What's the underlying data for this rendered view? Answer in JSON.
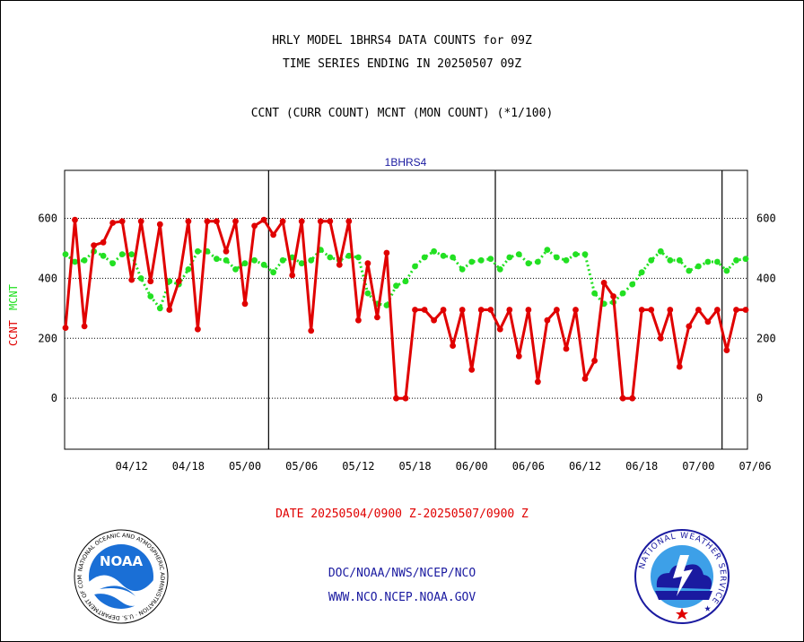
{
  "header": {
    "title_line1": "HRLY MODEL 1BHRS4 DATA COUNTS for 09Z",
    "title_line2": "TIME SERIES ENDING IN 20250507 09Z",
    "subtitle": "CCNT (CURR COUNT) MCNT (MON COUNT) (*1/100)"
  },
  "footer": {
    "date_range": "DATE 20250504/0900 Z-20250507/0900 Z",
    "credit_line1": "DOC/NOAA/NWS/NCEP/NCO",
    "credit_line2": "WWW.NCO.NCEP.NOAA.GOV"
  },
  "logos": {
    "noaa_text": "NOAA",
    "noaa_ring_text": "NATIONAL OCEANIC AND ATMOSPHERIC ADMINISTRATION · U.S. DEPARTMENT OF COMMERCE ·",
    "nws_ring_text": "NATIONAL WEATHER SERVICE ★"
  },
  "colors": {
    "ccnt": "#e00000",
    "mcnt": "#22e022",
    "panel_label": "#1a1aa0",
    "credits": "#1a1aa0",
    "date_range": "#e00000"
  },
  "chart_data": {
    "type": "line",
    "title": "1BHRS4",
    "ylabel_ccnt": "CCNT",
    "ylabel_mcnt": "MCNT",
    "ylim": [
      -170,
      760
    ],
    "y_ticks": [
      0,
      200,
      400,
      600
    ],
    "y_tick_labels": [
      "0",
      "200",
      "400",
      "600"
    ],
    "grid": true,
    "x_tick_labels": [
      "04/12",
      "04/18",
      "05/00",
      "05/06",
      "05/12",
      "05/18",
      "06/00",
      "06/06",
      "06/12",
      "06/18",
      "07/00",
      "07/06"
    ],
    "x_tick_hours": [
      15,
      21,
      27,
      33,
      39,
      45,
      51,
      57,
      63,
      69,
      75,
      81
    ],
    "x_range_hours": [
      8,
      80
    ],
    "day_boundaries_hours": [
      29.5,
      53.5,
      77.5
    ],
    "series": [
      {
        "name": "CCNT",
        "marker": "circle",
        "x": [
          8,
          9,
          10,
          11,
          12,
          13,
          14,
          15,
          16,
          17,
          18,
          19,
          20,
          21,
          22,
          23,
          24,
          25,
          26,
          27,
          28,
          29,
          30,
          31,
          32,
          33,
          34,
          35,
          36,
          37,
          38,
          39,
          40,
          41,
          42,
          43,
          44,
          45,
          46,
          47,
          48,
          49,
          50,
          51,
          52,
          53,
          54,
          55,
          56,
          57,
          58,
          59,
          60,
          61,
          62,
          63,
          64,
          65,
          66,
          67,
          68,
          69,
          70,
          71,
          72,
          73,
          74,
          75,
          76,
          77,
          78,
          79,
          80
        ],
        "values": [
          235,
          595,
          240,
          510,
          520,
          585,
          590,
          395,
          590,
          390,
          580,
          295,
          390,
          590,
          230,
          590,
          590,
          490,
          590,
          315,
          575,
          595,
          545,
          590,
          410,
          590,
          225,
          590,
          590,
          445,
          590,
          260,
          450,
          270,
          485,
          0,
          0,
          295,
          295,
          260,
          295,
          175,
          295,
          95,
          295,
          295,
          230,
          295,
          140,
          295,
          55,
          260,
          295,
          165,
          295,
          65,
          125,
          385,
          340,
          0,
          0,
          295,
          295,
          200,
          295,
          105,
          240,
          295,
          255,
          295,
          160,
          295,
          295
        ]
      },
      {
        "name": "MCNT",
        "marker": "circle",
        "x": [
          8,
          9,
          10,
          11,
          12,
          13,
          14,
          15,
          16,
          17,
          18,
          19,
          20,
          21,
          22,
          23,
          24,
          25,
          26,
          27,
          28,
          29,
          30,
          31,
          32,
          33,
          34,
          35,
          36,
          37,
          38,
          39,
          40,
          41,
          42,
          43,
          44,
          45,
          46,
          47,
          48,
          49,
          50,
          51,
          52,
          53,
          54,
          55,
          56,
          57,
          58,
          59,
          60,
          61,
          62,
          63,
          64,
          65,
          66,
          67,
          68,
          69,
          70,
          71,
          72,
          73,
          74,
          75,
          76,
          77,
          78,
          79,
          80
        ],
        "values": [
          480,
          455,
          460,
          490,
          475,
          450,
          480,
          480,
          400,
          340,
          300,
          390,
          380,
          430,
          490,
          490,
          465,
          460,
          430,
          450,
          460,
          445,
          420,
          460,
          470,
          450,
          460,
          495,
          470,
          460,
          475,
          470,
          350,
          315,
          310,
          375,
          390,
          440,
          470,
          490,
          475,
          470,
          430,
          455,
          460,
          465,
          430,
          470,
          480,
          450,
          455,
          495,
          470,
          460,
          480,
          480,
          350,
          315,
          320,
          350,
          380,
          420,
          460,
          490,
          460,
          460,
          425,
          440,
          455,
          455,
          425,
          460,
          465
        ]
      }
    ]
  }
}
